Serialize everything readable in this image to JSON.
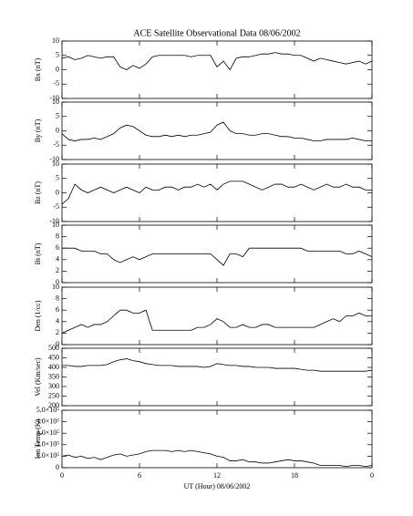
{
  "chart_data": [
    {
      "type": "line",
      "title": "ACE Satellite Observational Data   08/06/2002",
      "ylabel": "Bx (nT)",
      "ylim": [
        -10,
        10
      ],
      "yticks": [
        -10,
        -5,
        0,
        5,
        10
      ],
      "color": "#000000",
      "x": [
        0,
        0.5,
        1,
        1.5,
        2,
        2.5,
        3,
        3.5,
        4,
        4.5,
        5,
        5.5,
        6,
        6.5,
        7,
        7.5,
        8,
        8.5,
        9,
        9.5,
        10,
        10.5,
        11,
        11.5,
        12,
        12.5,
        13,
        13.5,
        14,
        14.5,
        15,
        15.5,
        16,
        16.5,
        17,
        17.5,
        18,
        18.5,
        19,
        19.5,
        20,
        20.5,
        21,
        21.5,
        22,
        22.5,
        23,
        23.5,
        24
      ],
      "values": [
        4,
        4.5,
        3.5,
        4,
        5,
        4.5,
        4,
        4.5,
        4.5,
        1,
        0,
        1.5,
        0.5,
        2,
        4.5,
        5,
        5,
        5,
        5,
        5,
        4.5,
        5,
        5,
        5,
        1,
        3,
        0,
        4,
        4.5,
        4.5,
        5,
        5.5,
        5.5,
        6,
        5.5,
        5.5,
        5,
        5,
        4,
        3,
        4,
        3.5,
        3,
        2.5,
        2,
        2.5,
        3,
        2,
        3
      ]
    },
    {
      "type": "line",
      "ylabel": "By (nT)",
      "ylim": [
        -10,
        10
      ],
      "yticks": [
        -10,
        -5,
        0,
        5,
        10
      ],
      "color": "#000000",
      "x": [
        0,
        0.5,
        1,
        1.5,
        2,
        2.5,
        3,
        3.5,
        4,
        4.5,
        5,
        5.5,
        6,
        6.5,
        7,
        7.5,
        8,
        8.5,
        9,
        9.5,
        10,
        10.5,
        11,
        11.5,
        12,
        12.5,
        13,
        13.5,
        14,
        14.5,
        15,
        15.5,
        16,
        16.5,
        17,
        17.5,
        18,
        18.5,
        19,
        19.5,
        20,
        20.5,
        21,
        21.5,
        22,
        22.5,
        23,
        23.5,
        24
      ],
      "values": [
        -1,
        -3,
        -3.5,
        -3,
        -3,
        -2.5,
        -3,
        -2,
        -1,
        1,
        2,
        1.5,
        0,
        -1.5,
        -2,
        -2,
        -1.5,
        -2,
        -1.5,
        -2,
        -1.5,
        -1.5,
        -1,
        -0.5,
        2,
        3,
        0,
        -1,
        -1,
        -1.5,
        -1.5,
        -1,
        -1,
        -1.5,
        -2,
        -2,
        -2.5,
        -2.5,
        -3,
        -3.5,
        -3.5,
        -3,
        -3,
        -3,
        -3,
        -2.5,
        -3,
        -3.5,
        -3.5
      ]
    },
    {
      "type": "line",
      "ylabel": "Bz (nT)",
      "ylim": [
        -10,
        10
      ],
      "yticks": [
        -10,
        -5,
        0,
        5,
        10
      ],
      "color": "#000000",
      "x": [
        0,
        0.5,
        1,
        1.5,
        2,
        2.5,
        3,
        3.5,
        4,
        4.5,
        5,
        5.5,
        6,
        6.5,
        7,
        7.5,
        8,
        8.5,
        9,
        9.5,
        10,
        10.5,
        11,
        11.5,
        12,
        12.5,
        13,
        13.5,
        14,
        14.5,
        15,
        15.5,
        16,
        16.5,
        17,
        17.5,
        18,
        18.5,
        19,
        19.5,
        20,
        20.5,
        21,
        21.5,
        22,
        22.5,
        23,
        23.5,
        24
      ],
      "values": [
        -4,
        -2,
        3,
        1,
        0,
        1,
        2,
        1,
        0,
        1,
        2,
        1,
        0,
        2,
        1,
        1,
        2,
        2,
        1,
        2,
        2,
        3,
        2,
        3,
        1,
        3,
        4,
        4,
        4,
        3,
        2,
        1,
        2,
        3,
        3,
        2,
        2,
        3,
        2,
        1,
        2,
        3,
        2,
        2,
        3,
        2,
        2,
        1,
        1
      ]
    },
    {
      "type": "line",
      "ylabel": "Bt (nT)",
      "ylim": [
        0,
        10
      ],
      "yticks": [
        0,
        2,
        4,
        6,
        8,
        10
      ],
      "color": "#000000",
      "x": [
        0,
        0.5,
        1,
        1.5,
        2,
        2.5,
        3,
        3.5,
        4,
        4.5,
        5,
        5.5,
        6,
        6.5,
        7,
        7.5,
        8,
        8.5,
        9,
        9.5,
        10,
        10.5,
        11,
        11.5,
        12,
        12.5,
        13,
        13.5,
        14,
        14.5,
        15,
        15.5,
        16,
        16.5,
        17,
        17.5,
        18,
        18.5,
        19,
        19.5,
        20,
        20.5,
        21,
        21.5,
        22,
        22.5,
        23,
        23.5,
        24
      ],
      "values": [
        6,
        6,
        6,
        5.5,
        5.5,
        5.5,
        5,
        5,
        4,
        3.5,
        4,
        4.5,
        4,
        4.5,
        5,
        5,
        5,
        5,
        5,
        5,
        5,
        5,
        5,
        5,
        4,
        3,
        5,
        5,
        4.5,
        6,
        6,
        6,
        6,
        6,
        6,
        6,
        6,
        6,
        5.5,
        5.5,
        5.5,
        5.5,
        5.5,
        5.5,
        5,
        5,
        5.5,
        5,
        4.5
      ]
    },
    {
      "type": "line",
      "ylabel": "Den (1/cc)",
      "ylim": [
        0,
        10
      ],
      "yticks": [
        0,
        2,
        4,
        6,
        8,
        10
      ],
      "color": "#000000",
      "x": [
        0,
        0.5,
        1,
        1.5,
        2,
        2.5,
        3,
        3.5,
        4,
        4.5,
        5,
        5.5,
        6,
        6.5,
        7,
        7.5,
        8,
        8.5,
        9,
        9.5,
        10,
        10.5,
        11,
        11.5,
        12,
        12.5,
        13,
        13.5,
        14,
        14.5,
        15,
        15.5,
        16,
        16.5,
        17,
        17.5,
        18,
        18.5,
        19,
        19.5,
        20,
        20.5,
        21,
        21.5,
        22,
        22.5,
        23,
        23.5,
        24
      ],
      "values": [
        2,
        2.5,
        3,
        3.5,
        3,
        3.5,
        3.5,
        4,
        5,
        6,
        6,
        5.5,
        5.5,
        6,
        2.5,
        2.5,
        2.5,
        2.5,
        2.5,
        2.5,
        2.5,
        3,
        3,
        3.5,
        4.5,
        4,
        3,
        3,
        3.5,
        3,
        3,
        3.5,
        3.5,
        3,
        3,
        3,
        3,
        3,
        3,
        3,
        3.5,
        4,
        4.5,
        4,
        5,
        5,
        5.5,
        5,
        5
      ]
    },
    {
      "type": "line",
      "ylabel": "Vel (Km/sec)",
      "ylim": [
        200,
        500
      ],
      "yticks": [
        200,
        250,
        300,
        350,
        400,
        450,
        500
      ],
      "color": "#000000",
      "x": [
        0,
        0.5,
        1,
        1.5,
        2,
        2.5,
        3,
        3.5,
        4,
        4.5,
        5,
        5.5,
        6,
        6.5,
        7,
        7.5,
        8,
        8.5,
        9,
        9.5,
        10,
        10.5,
        11,
        11.5,
        12,
        12.5,
        13,
        13.5,
        14,
        14.5,
        15,
        15.5,
        16,
        16.5,
        17,
        17.5,
        18,
        18.5,
        19,
        19.5,
        20,
        20.5,
        21,
        21.5,
        22,
        22.5,
        23,
        23.5,
        24
      ],
      "values": [
        410,
        410,
        405,
        405,
        410,
        410,
        410,
        415,
        430,
        440,
        445,
        435,
        430,
        420,
        415,
        410,
        410,
        410,
        405,
        405,
        405,
        405,
        400,
        405,
        420,
        415,
        410,
        410,
        405,
        405,
        400,
        400,
        400,
        395,
        395,
        395,
        395,
        390,
        385,
        385,
        380,
        380,
        380,
        380,
        380,
        380,
        380,
        380,
        385
      ]
    },
    {
      "type": "line",
      "ylabel": "Ion Temp (K)",
      "xlabel": "UT (Hour)  08/06/2002",
      "ylim": [
        0,
        500000
      ],
      "yticks": [
        0,
        {
          "value": 100000,
          "label": "1.0×10⁵"
        },
        {
          "value": 200000,
          "label": "2.0×10⁵"
        },
        {
          "value": 300000,
          "label": "3.0×10⁵"
        },
        {
          "value": 400000,
          "label": "4.0×10⁵"
        },
        {
          "value": 500000,
          "label": "5.0×10⁵"
        }
      ],
      "xlim": [
        0,
        24
      ],
      "xticks": [
        0,
        6,
        12,
        18,
        {
          "value": 24,
          "label": "0"
        }
      ],
      "color": "#000000",
      "x": [
        0,
        0.5,
        1,
        1.5,
        2,
        2.5,
        3,
        3.5,
        4,
        4.5,
        5,
        5.5,
        6,
        6.5,
        7,
        7.5,
        8,
        8.5,
        9,
        9.5,
        10,
        10.5,
        11,
        11.5,
        12,
        12.5,
        13,
        13.5,
        14,
        14.5,
        15,
        15.5,
        16,
        16.5,
        17,
        17.5,
        18,
        18.5,
        19,
        19.5,
        20,
        20.5,
        21,
        21.5,
        22,
        22.5,
        23,
        23.5,
        24
      ],
      "values": [
        100000,
        110000,
        90000,
        100000,
        80000,
        90000,
        70000,
        90000,
        110000,
        120000,
        100000,
        110000,
        120000,
        140000,
        150000,
        150000,
        150000,
        140000,
        150000,
        140000,
        150000,
        140000,
        130000,
        120000,
        100000,
        90000,
        60000,
        60000,
        70000,
        50000,
        50000,
        40000,
        40000,
        50000,
        60000,
        70000,
        60000,
        60000,
        50000,
        40000,
        20000,
        20000,
        20000,
        20000,
        10000,
        20000,
        20000,
        10000,
        20000
      ]
    }
  ]
}
